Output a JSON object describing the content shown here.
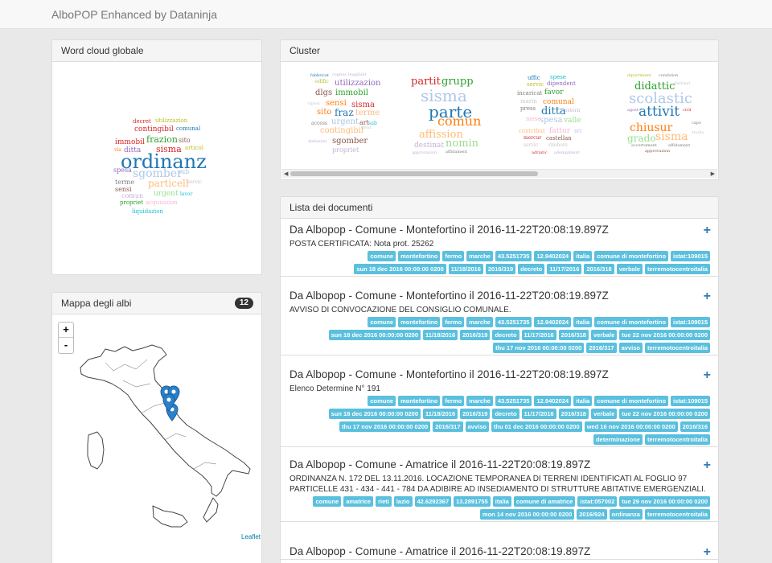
{
  "navbar": {
    "brand": "AlboPOP Enhanced by Dataninja"
  },
  "wordcloud_panel": {
    "title": "Word cloud globale",
    "words": [
      {
        "text": "decret",
        "size": 7,
        "color": "#d62728"
      },
      {
        "text": "utilizzazion",
        "size": 7,
        "color": "#bcbd22"
      },
      {
        "text": "contingibil",
        "size": 9,
        "color": "#d62728"
      },
      {
        "text": "comunal",
        "size": 7,
        "color": "#1f77b4"
      },
      {
        "text": "immobil",
        "size": 9,
        "color": "#d62728"
      },
      {
        "text": "frazion",
        "size": 11,
        "color": "#2ca02c"
      },
      {
        "text": "sito",
        "size": 8,
        "color": "#8c564b"
      },
      {
        "text": "via",
        "size": 6,
        "color": "#ff7f0e"
      },
      {
        "text": "ditta",
        "size": 9,
        "color": "#9467bd"
      },
      {
        "text": "sisma",
        "size": 11,
        "color": "#d62728"
      },
      {
        "text": "articol",
        "size": 7,
        "color": "#bcbd22"
      },
      {
        "text": "ordinanz",
        "size": 24,
        "color": "#1f77b4"
      },
      {
        "text": "spesa",
        "size": 8,
        "color": "#9467bd"
      },
      {
        "text": "sgomber",
        "size": 14,
        "color": "#aec7e8"
      },
      {
        "text": "sub",
        "size": 8,
        "color": "#aec7e8"
      },
      {
        "text": "terme",
        "size": 8,
        "color": "#7f7f7f"
      },
      {
        "text": "particell",
        "size": 12,
        "color": "#ffbb78"
      },
      {
        "text": "servic",
        "size": 6,
        "color": "#c7c7c7"
      },
      {
        "text": "sensi",
        "size": 8,
        "color": "#8c564b"
      },
      {
        "text": "comun",
        "size": 8,
        "color": "#c5b0d5"
      },
      {
        "text": "urgent",
        "size": 9,
        "color": "#98df8a"
      },
      {
        "text": "lavor",
        "size": 6,
        "color": "#17becf"
      },
      {
        "text": "propriet",
        "size": 7,
        "color": "#2ca02c"
      },
      {
        "text": "acquisizion",
        "size": 7,
        "color": "#f7b6d2"
      },
      {
        "text": "liquidazion",
        "size": 7,
        "color": "#17becf"
      }
    ]
  },
  "map_panel": {
    "title": "Mappa degli albi",
    "count": "12",
    "zoom_in": "+",
    "zoom_out": "-",
    "attribution": "Leaflet"
  },
  "cluster_panel": {
    "title": "Cluster",
    "clouds": [
      {
        "words": [
          {
            "text": "fabbricat",
            "size": 5,
            "color": "#1f77b4"
          },
          {
            "text": "cognos",
            "size": 5,
            "color": "#c5b0d5"
          },
          {
            "text": "inagibilit",
            "size": 5,
            "color": "#c5b0d5"
          },
          {
            "text": "edific",
            "size": 6,
            "color": "#bcbd22"
          },
          {
            "text": "utilizzazion",
            "size": 10,
            "color": "#9467bd"
          },
          {
            "text": "dlgs",
            "size": 10,
            "color": "#8c564b"
          },
          {
            "text": "immobil",
            "size": 10,
            "color": "#2ca02c"
          },
          {
            "text": "ripost",
            "size": 5,
            "color": "#c7c7c7"
          },
          {
            "text": "sensi",
            "size": 10,
            "color": "#ff7f0e"
          },
          {
            "text": "sisma",
            "size": 10,
            "color": "#d62728"
          },
          {
            "text": "sito",
            "size": 10,
            "color": "#ff7f0e"
          },
          {
            "text": "fraz",
            "size": 12,
            "color": "#1f77b4"
          },
          {
            "text": "terme",
            "size": 10,
            "color": "#ffbb78"
          },
          {
            "text": "access",
            "size": 6,
            "color": "#7f7f7f"
          },
          {
            "text": "urgent",
            "size": 10,
            "color": "#aec7e8"
          },
          {
            "text": "art",
            "size": 8,
            "color": "#8c564b"
          },
          {
            "text": "sub",
            "size": 6,
            "color": "#17becf"
          },
          {
            "text": "contingibil",
            "size": 10,
            "color": "#ffbb78"
          },
          {
            "text": "divid",
            "size": 5,
            "color": "#c7c7c7"
          },
          {
            "text": "abitazion",
            "size": 5,
            "color": "#c5b0d5"
          },
          {
            "text": "sgomber",
            "size": 10,
            "color": "#8c564b"
          },
          {
            "text": "propriet",
            "size": 8,
            "color": "#c5b0d5"
          }
        ]
      },
      {
        "words": [
          {
            "text": "partit",
            "size": 13,
            "color": "#d62728"
          },
          {
            "text": "grupp",
            "size": 13,
            "color": "#2ca02c"
          },
          {
            "text": "sisma",
            "size": 20,
            "color": "#aec7e8"
          },
          {
            "text": "parte",
            "size": 20,
            "color": "#1f77b4"
          },
          {
            "text": "comun",
            "size": 16,
            "color": "#ff7f0e"
          },
          {
            "text": "affission",
            "size": 13,
            "color": "#ffbb78"
          },
          {
            "text": "destinat",
            "size": 9,
            "color": "#c5b0d5"
          },
          {
            "text": "nomin",
            "size": 13,
            "color": "#98df8a"
          },
          {
            "text": "approvazion",
            "size": 5,
            "color": "#c5b0d5"
          },
          {
            "text": "affidament",
            "size": 5,
            "color": "#7f7f7f"
          }
        ]
      },
      {
        "words": [
          {
            "text": "uffic",
            "size": 7,
            "color": "#1f77b4"
          },
          {
            "text": "spese",
            "size": 7,
            "color": "#17becf"
          },
          {
            "text": "servic",
            "size": 7,
            "color": "#bcbd22"
          },
          {
            "text": "dipendent",
            "size": 7,
            "color": "#9467bd"
          },
          {
            "text": "incaricat",
            "size": 7,
            "color": "#7f7f7f"
          },
          {
            "text": "favor",
            "size": 9,
            "color": "#2ca02c"
          },
          {
            "text": "marin",
            "size": 7,
            "color": "#c7c7c7"
          },
          {
            "text": "comunal",
            "size": 9,
            "color": "#ff7f0e"
          },
          {
            "text": "press",
            "size": 7,
            "color": "#7f7f7f"
          },
          {
            "text": "ditta",
            "size": 13,
            "color": "#1f77b4"
          },
          {
            "text": "estern",
            "size": 6,
            "color": "#c5b0d5"
          },
          {
            "text": "mese",
            "size": 7,
            "color": "#f7b6d2"
          },
          {
            "text": "spesa",
            "size": 10,
            "color": "#aec7e8"
          },
          {
            "text": "valle",
            "size": 9,
            "color": "#98df8a"
          },
          {
            "text": "contribut",
            "size": 7,
            "color": "#ffbb78"
          },
          {
            "text": "fattur",
            "size": 9,
            "color": "#f7b6d2"
          },
          {
            "text": "sri",
            "size": 7,
            "color": "#aec7e8"
          },
          {
            "text": "mercur",
            "size": 6,
            "color": "#d62728"
          },
          {
            "text": "castellan",
            "size": 7,
            "color": "#8c564b"
          },
          {
            "text": "servic",
            "size": 6,
            "color": "#c7c7c7"
          },
          {
            "text": "rimbors",
            "size": 6,
            "color": "#c7c7c7"
          },
          {
            "text": "adriatic",
            "size": 5,
            "color": "#d62728"
          },
          {
            "text": "adempiment",
            "size": 5,
            "color": "#c5b0d5"
          }
        ]
      },
      {
        "words": [
          {
            "text": "dipartiment",
            "size": 5,
            "color": "#bcbd22"
          },
          {
            "text": "condizion",
            "size": 5,
            "color": "#7f7f7f"
          },
          {
            "text": "didattic",
            "size": 13,
            "color": "#2ca02c"
          },
          {
            "text": "destinat",
            "size": 5,
            "color": "#c7c7c7"
          },
          {
            "text": "scolastic",
            "size": 18,
            "color": "#aec7e8"
          },
          {
            "text": "agost",
            "size": 5,
            "color": "#9467bd"
          },
          {
            "text": "attivit",
            "size": 17,
            "color": "#1f77b4"
          },
          {
            "text": "civil",
            "size": 5,
            "color": "#d62728"
          },
          {
            "text": "chiusur",
            "size": 14,
            "color": "#ff7f0e"
          },
          {
            "text": "capo",
            "size": 5,
            "color": "#7f7f7f"
          },
          {
            "text": "grado",
            "size": 12,
            "color": "#98df8a"
          },
          {
            "text": "sisma",
            "size": 14,
            "color": "#ffbb78"
          },
          {
            "text": "studio",
            "size": 5,
            "color": "#c7c7c7"
          },
          {
            "text": "accertament",
            "size": 5,
            "color": "#7f7f7f"
          },
          {
            "text": "affidament",
            "size": 5,
            "color": "#7f7f7f"
          },
          {
            "text": "approvazion",
            "size": 5,
            "color": "#8c564b"
          }
        ]
      }
    ]
  },
  "documents_panel": {
    "title": "Lista dei documenti",
    "items": [
      {
        "title": "Da Albopop - Comune - Montefortino il 2016-11-22T20:08:19.897Z",
        "description": "POSTA CERTIFICATA: Nota prot. 25262",
        "tags": [
          "comune",
          "montefortino",
          "fermo",
          "marche",
          "43.5251735",
          "12.9402024",
          "italia",
          "comune di montefortino",
          "istat:109015",
          "sun 18 dec 2016 00:00:00 0200",
          "11/18/2016",
          "2016/319",
          "decreto",
          "11/17/2016",
          "2016/318",
          "verbale",
          "terremotocentroitalia"
        ]
      },
      {
        "title": "Da Albopop - Comune - Montefortino il 2016-11-22T20:08:19.897Z",
        "description": "AVVISO DI CONVOCAZIONE DEL CONSIGLIO COMUNALE.",
        "tags": [
          "comune",
          "montefortino",
          "fermo",
          "marche",
          "43.5251735",
          "12.9402024",
          "italia",
          "comune di montefortino",
          "istat:109015",
          "sun 18 dec 2016 00:00:00 0200",
          "11/18/2016",
          "2016/319",
          "decreto",
          "11/17/2016",
          "2016/318",
          "verbale",
          "tue 22 nov 2016 00:00:00 0200",
          "thu 17 nov 2016 00:00:00 0200",
          "2016/317",
          "avviso",
          "terremotocentroitalia"
        ]
      },
      {
        "title": "Da Albopop - Comune - Montefortino il 2016-11-22T20:08:19.897Z",
        "description": "Elenco Determine N° 191",
        "tags": [
          "comune",
          "montefortino",
          "fermo",
          "marche",
          "43.5251735",
          "12.9402024",
          "italia",
          "comune di montefortino",
          "istat:109015",
          "sun 18 dec 2016 00:00:00 0200",
          "11/18/2016",
          "2016/319",
          "decreto",
          "11/17/2016",
          "2016/318",
          "verbale",
          "tue 22 nov 2016 00:00:00 0200",
          "thu 17 nov 2016 00:00:00 0200",
          "2016/317",
          "avviso",
          "thu 01 dec 2016 00:00:00 0200",
          "wed 16 nov 2016 00:00:00 0200",
          "2016/316",
          "determinazione",
          "terremotocentroitalia"
        ]
      },
      {
        "title": "Da Albopop - Comune - Amatrice il 2016-11-22T20:08:19.897Z",
        "description": "ORDINANZA N. 172 DEL 13.11.2016. LOCAZIONE TEMPORANEA DI TERRENI IDENTIFICATI AL FOGLIO 97 PARTICELLE 431 - 434 - 441 - 784 DA ADIBIRE AD INSEDIAMENTO DI STRUTTURE ABITATIVE EMERGENZIALI.",
        "tags": [
          "comune",
          "amatrice",
          "rieti",
          "lazio",
          "42.6292367",
          "13.2891755",
          "italia",
          "comune di amatrice",
          "istat:057002",
          "tue 29 nov 2016 00:00:00 0200",
          "mon 14 nov 2016 00:00:00 0200",
          "2016/924",
          "ordinanza",
          "terremotocentroitalia"
        ]
      },
      {
        "title": "Da Albopop - Comune - Amatrice il 2016-11-22T20:08:19.897Z",
        "description": "",
        "tags": []
      }
    ]
  },
  "icons": {
    "plus": "plus-icon",
    "map_marker": "map-marker-icon"
  }
}
